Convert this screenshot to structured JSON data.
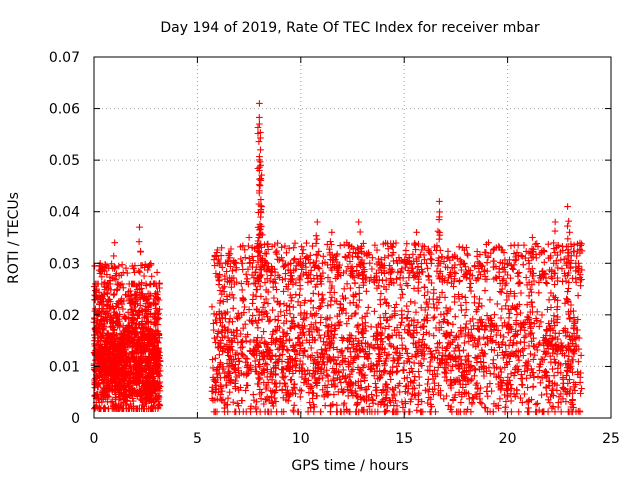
{
  "chart_data": {
    "type": "scatter",
    "title": "Day 194 of 2019, Rate Of TEC Index for receiver mbar",
    "xlabel": "GPS time / hours",
    "ylabel": "ROTI / TECUs",
    "xlim": [
      0,
      25
    ],
    "ylim": [
      0,
      0.07
    ],
    "xticks": [
      "0",
      "5",
      "10",
      "15",
      "20",
      "25"
    ],
    "yticks": [
      "0",
      "0.01",
      "0.02",
      "0.03",
      "0.04",
      "0.05",
      "0.06",
      "0.07"
    ],
    "grid": true,
    "marker": "plus",
    "color": "#ff0000",
    "series": [
      {
        "name": "ROTI",
        "segments": [
          {
            "x_start": 0.0,
            "x_end": 3.2,
            "typical_min": 0.003,
            "typical_max": 0.022,
            "typical_median": 0.011
          },
          {
            "x_start": 5.7,
            "x_end": 23.6,
            "typical_min": 0.002,
            "typical_max": 0.026,
            "typical_median": 0.012
          }
        ],
        "peaks": [
          {
            "x": 0.3,
            "y": 0.03
          },
          {
            "x": 1.0,
            "y": 0.034
          },
          {
            "x": 2.2,
            "y": 0.037
          },
          {
            "x": 3.0,
            "y": 0.026
          },
          {
            "x": 7.5,
            "y": 0.035
          },
          {
            "x": 8.0,
            "y": 0.061
          },
          {
            "x": 8.0,
            "y": 0.057
          },
          {
            "x": 8.05,
            "y": 0.052
          },
          {
            "x": 8.0,
            "y": 0.048
          },
          {
            "x": 8.1,
            "y": 0.041
          },
          {
            "x": 10.8,
            "y": 0.038
          },
          {
            "x": 11.5,
            "y": 0.036
          },
          {
            "x": 12.8,
            "y": 0.038
          },
          {
            "x": 15.6,
            "y": 0.036
          },
          {
            "x": 16.7,
            "y": 0.042
          },
          {
            "x": 16.7,
            "y": 0.039
          },
          {
            "x": 21.2,
            "y": 0.035
          },
          {
            "x": 22.3,
            "y": 0.038
          },
          {
            "x": 22.9,
            "y": 0.041
          },
          {
            "x": 23.0,
            "y": 0.036
          },
          {
            "x": 23.5,
            "y": 0.032
          }
        ]
      }
    ]
  }
}
